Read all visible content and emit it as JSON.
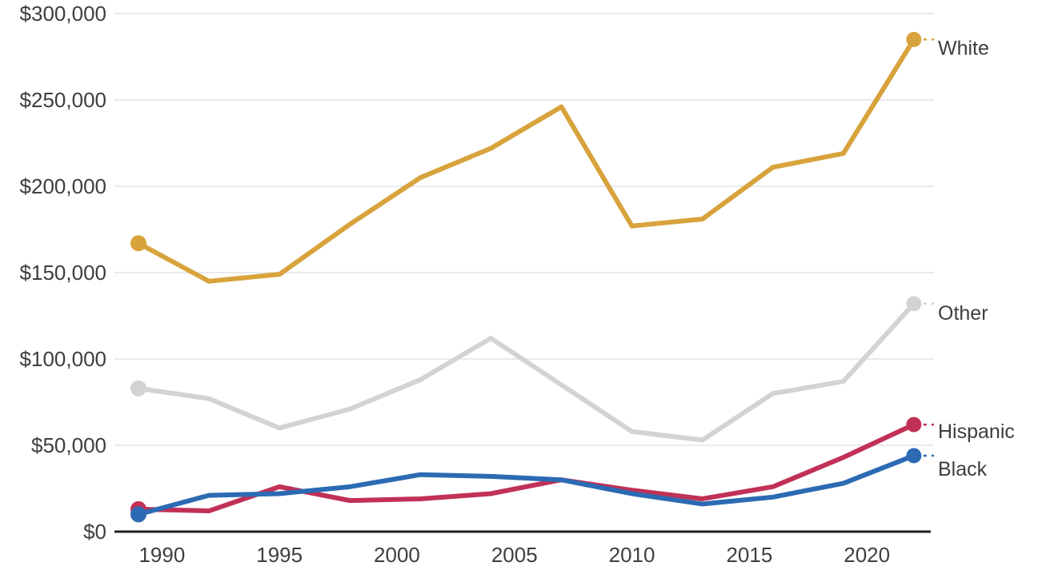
{
  "chart_data": {
    "type": "line",
    "x": [
      1989,
      1992,
      1995,
      1998,
      2001,
      2004,
      2007,
      2010,
      2013,
      2016,
      2019,
      2022
    ],
    "x_ticks": [
      1990,
      1995,
      2000,
      2005,
      2010,
      2015,
      2020
    ],
    "y_ticks": [
      {
        "value": 0,
        "label": "$0"
      },
      {
        "value": 50000,
        "label": "$50,000"
      },
      {
        "value": 100000,
        "label": "$100,000"
      },
      {
        "value": 150000,
        "label": "$150,000"
      },
      {
        "value": 200000,
        "label": "$200,000"
      },
      {
        "value": 250000,
        "label": "$250,000"
      },
      {
        "value": 300000,
        "label": "$300,000"
      }
    ],
    "ylim": [
      0,
      300000
    ],
    "xlim": [
      1989,
      2022
    ],
    "grid": "horizontal",
    "legend_position": "right-end-labels",
    "series": [
      {
        "name": "White",
        "color": "#D8A33C",
        "label_dy": 11,
        "values": [
          167000,
          145000,
          149000,
          178000,
          205000,
          222000,
          246000,
          177000,
          181000,
          211000,
          219000,
          285000
        ]
      },
      {
        "name": "Other",
        "color": "#D3D3D3",
        "label_dy": 12,
        "values": [
          83000,
          77000,
          60000,
          71000,
          88000,
          112000,
          85000,
          58000,
          53000,
          80000,
          87000,
          132000
        ]
      },
      {
        "name": "Hispanic",
        "color": "#C13157",
        "label_dy": 9,
        "values": [
          13000,
          12000,
          26000,
          18000,
          19000,
          22000,
          30000,
          24000,
          19000,
          26000,
          43000,
          62000
        ]
      },
      {
        "name": "Black",
        "color": "#2C6BB3",
        "label_dy": 17,
        "values": [
          10000,
          21000,
          22000,
          26000,
          33000,
          32000,
          30000,
          22000,
          16000,
          20000,
          28000,
          44000
        ]
      }
    ],
    "draw_order": [
      1,
      0,
      2,
      3
    ]
  },
  "colors": {
    "background": "#FFFFFF",
    "grid": "#E3E3E3",
    "axis": "#212121",
    "tick_text": "#3E3E3E",
    "label_text": "#3E3E3E"
  }
}
